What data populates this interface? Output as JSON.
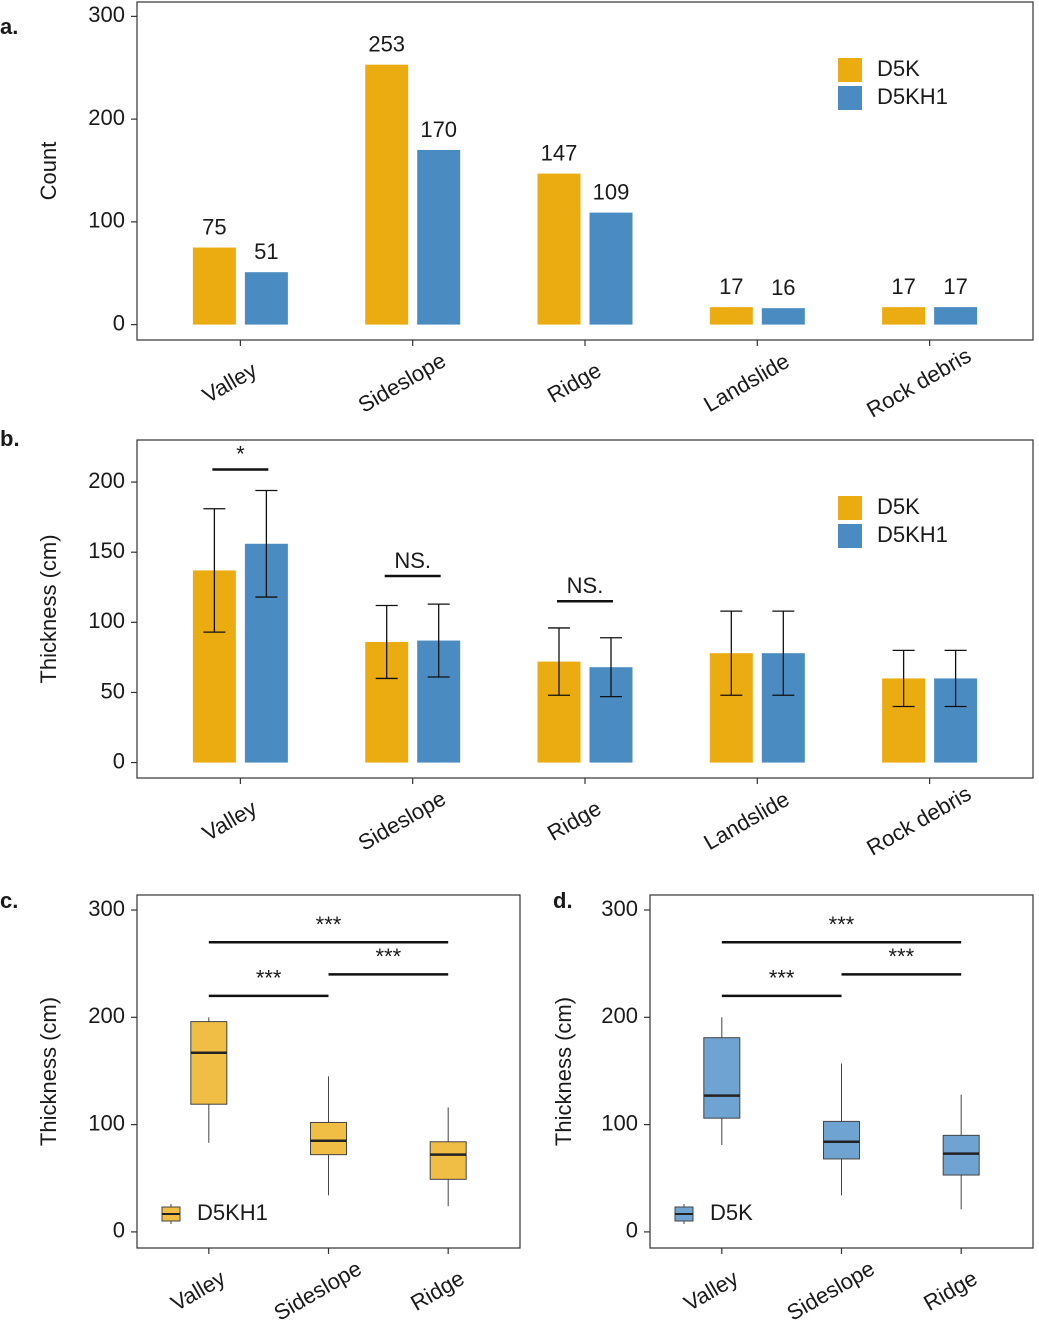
{
  "chart_data": [
    {
      "type": "bar",
      "label": "a.",
      "ylabel": "Count",
      "categories": [
        "Valley",
        "Sideslope",
        "Ridge",
        "Landslide",
        "Rock debris"
      ],
      "series": [
        {
          "name": "D5K",
          "color": "#EBAC12",
          "values": [
            75,
            253,
            147,
            17,
            17
          ]
        },
        {
          "name": "D5KH1",
          "color": "#4A8CC2",
          "values": [
            51,
            170,
            109,
            16,
            17
          ]
        }
      ],
      "ylim": [
        -15,
        314
      ],
      "yticks": [
        0,
        100,
        200,
        300
      ],
      "legend": "top-right",
      "data_labels": true
    },
    {
      "type": "bar",
      "label": "b.",
      "ylabel": "Thickness (cm)",
      "categories": [
        "Valley",
        "Sideslope",
        "Ridge",
        "Landslide",
        "Rock debris"
      ],
      "series": [
        {
          "name": "D5K",
          "color": "#EBAC12",
          "values": [
            137,
            86,
            72,
            78,
            60
          ],
          "errors": [
            44,
            26,
            24,
            30,
            20
          ]
        },
        {
          "name": "D5KH1",
          "color": "#4A8CC2",
          "values": [
            156,
            87,
            68,
            78,
            60
          ],
          "errors": [
            38,
            26,
            21,
            30,
            20
          ]
        }
      ],
      "significance": [
        {
          "category": 0,
          "label": "*",
          "y": 209
        },
        {
          "category": 1,
          "label": "NS.",
          "y": 133
        },
        {
          "category": 2,
          "label": "NS.",
          "y": 115
        }
      ],
      "ylim": [
        -11,
        230
      ],
      "yticks": [
        0,
        50,
        100,
        150,
        200
      ],
      "legend": "top-right",
      "data_labels": false
    },
    {
      "type": "box",
      "label": "c.",
      "ylabel": "Thickness (cm)",
      "categories": [
        "Valley",
        "Sideslope",
        "Ridge"
      ],
      "series": [
        {
          "name": "D5KH1",
          "color": "#F0BD45",
          "values": [
            {
              "min": 83,
              "q1": 119,
              "median": 167,
              "q3": 196,
              "max": 200
            },
            {
              "min": 34,
              "q1": 72,
              "median": 85,
              "q3": 102,
              "max": 145
            },
            {
              "min": 24,
              "q1": 49,
              "median": 72,
              "q3": 84,
              "max": 116
            }
          ]
        }
      ],
      "comparisons": [
        {
          "groups": [
            0,
            1
          ],
          "label": "***",
          "y": 220
        },
        {
          "groups": [
            1,
            2
          ],
          "label": "***",
          "y": 240
        },
        {
          "groups": [
            0,
            2
          ],
          "label": "***",
          "y": 270
        }
      ],
      "ylim": [
        -15,
        314
      ],
      "yticks": [
        0,
        100,
        200,
        300
      ],
      "legend": "bottom-left"
    },
    {
      "type": "box",
      "label": "d.",
      "ylabel": "Thickness (cm)",
      "categories": [
        "Valley",
        "Sideslope",
        "Ridge"
      ],
      "series": [
        {
          "name": "D5K",
          "color": "#6FA4D2",
          "values": [
            {
              "min": 81,
              "q1": 106,
              "median": 127,
              "q3": 181,
              "max": 200
            },
            {
              "min": 34,
              "q1": 68,
              "median": 84,
              "q3": 103,
              "max": 157
            },
            {
              "min": 21,
              "q1": 53,
              "median": 73,
              "q3": 90,
              "max": 128
            }
          ]
        }
      ],
      "comparisons": [
        {
          "groups": [
            0,
            1
          ],
          "label": "***",
          "y": 220
        },
        {
          "groups": [
            1,
            2
          ],
          "label": "***",
          "y": 240
        },
        {
          "groups": [
            0,
            2
          ],
          "label": "***",
          "y": 270
        }
      ],
      "ylim": [
        -15,
        314
      ],
      "yticks": [
        0,
        100,
        200,
        300
      ],
      "legend": "bottom-left"
    }
  ]
}
